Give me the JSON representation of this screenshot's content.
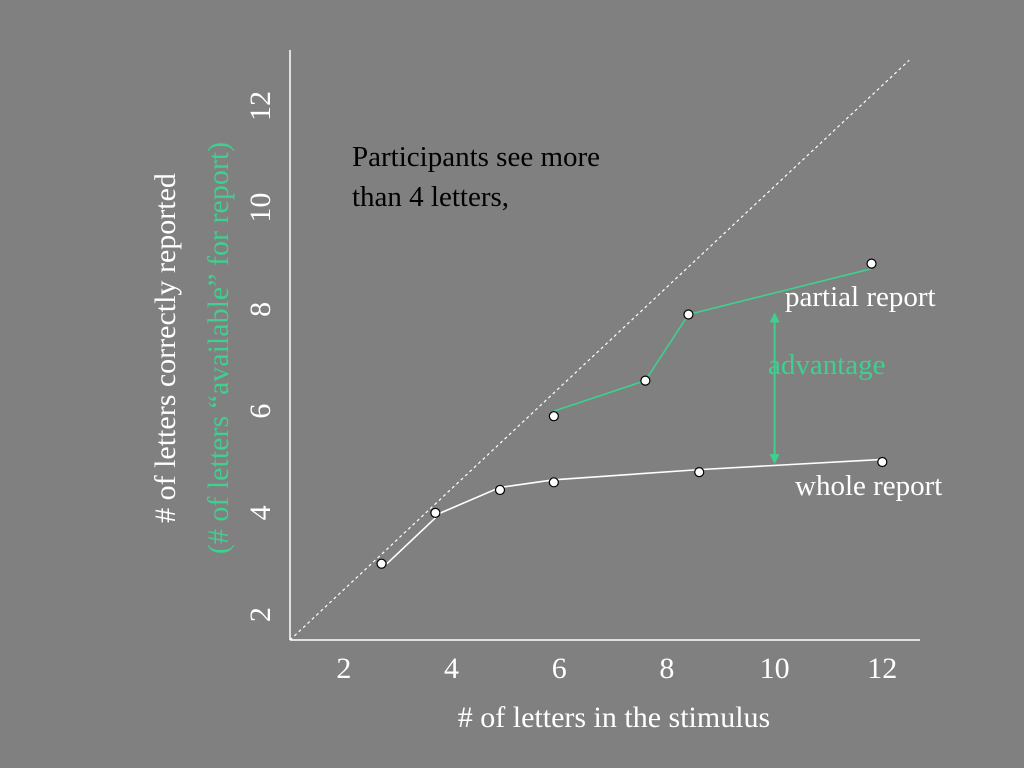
{
  "chart_data": {
    "type": "line",
    "xlabel": "# of letters in the stimulus",
    "ylabel": "# of letters correctly reported",
    "ylabel2": "(# of letters “available” for report)",
    "xlim": [
      1,
      12.7
    ],
    "ylim": [
      1.5,
      13.1
    ],
    "x_ticks": [
      "2",
      "4",
      "6",
      "8",
      "10",
      "12"
    ],
    "y_ticks": [
      "2",
      "4",
      "6",
      "8",
      "10",
      "12"
    ],
    "x_tick_values": [
      2,
      4,
      6,
      8,
      10,
      12
    ],
    "y_tick_values": [
      2,
      4,
      6,
      8,
      10,
      12
    ],
    "diagonal": {
      "from": [
        1,
        1.5
      ],
      "to": [
        12.5,
        12.9
      ]
    },
    "series": [
      {
        "name": "whole report",
        "color": "#ffffff",
        "line": [
          [
            2.8,
            3.0
          ],
          [
            3.8,
            4.0
          ],
          [
            4.9,
            4.5
          ],
          [
            5.9,
            4.65
          ],
          [
            8.6,
            4.85
          ],
          [
            12.0,
            5.05
          ]
        ],
        "points": [
          [
            2.7,
            3.0
          ],
          [
            3.7,
            4.0
          ],
          [
            4.9,
            4.45
          ],
          [
            5.9,
            4.6
          ],
          [
            8.6,
            4.8
          ],
          [
            12.0,
            5.0
          ]
        ]
      },
      {
        "name": "partial report",
        "color": "#3fcf8e",
        "line": [
          [
            5.9,
            6.0
          ],
          [
            7.6,
            6.6
          ],
          [
            8.4,
            7.9
          ],
          [
            11.8,
            8.8
          ]
        ],
        "points": [
          [
            5.9,
            5.9
          ],
          [
            7.6,
            6.6
          ],
          [
            8.4,
            7.9
          ],
          [
            11.8,
            8.9
          ]
        ]
      }
    ],
    "advantage_arrow": {
      "x": 10.0,
      "y_top": 8.0,
      "y_bottom": 4.9,
      "color": "#3fcf8e"
    },
    "annotations": {
      "partial_label": "partial report",
      "whole_label": "whole report",
      "advantage_label": "advantage",
      "note_line1": "Participants see more",
      "note_line2": "than 4 letters,"
    }
  }
}
